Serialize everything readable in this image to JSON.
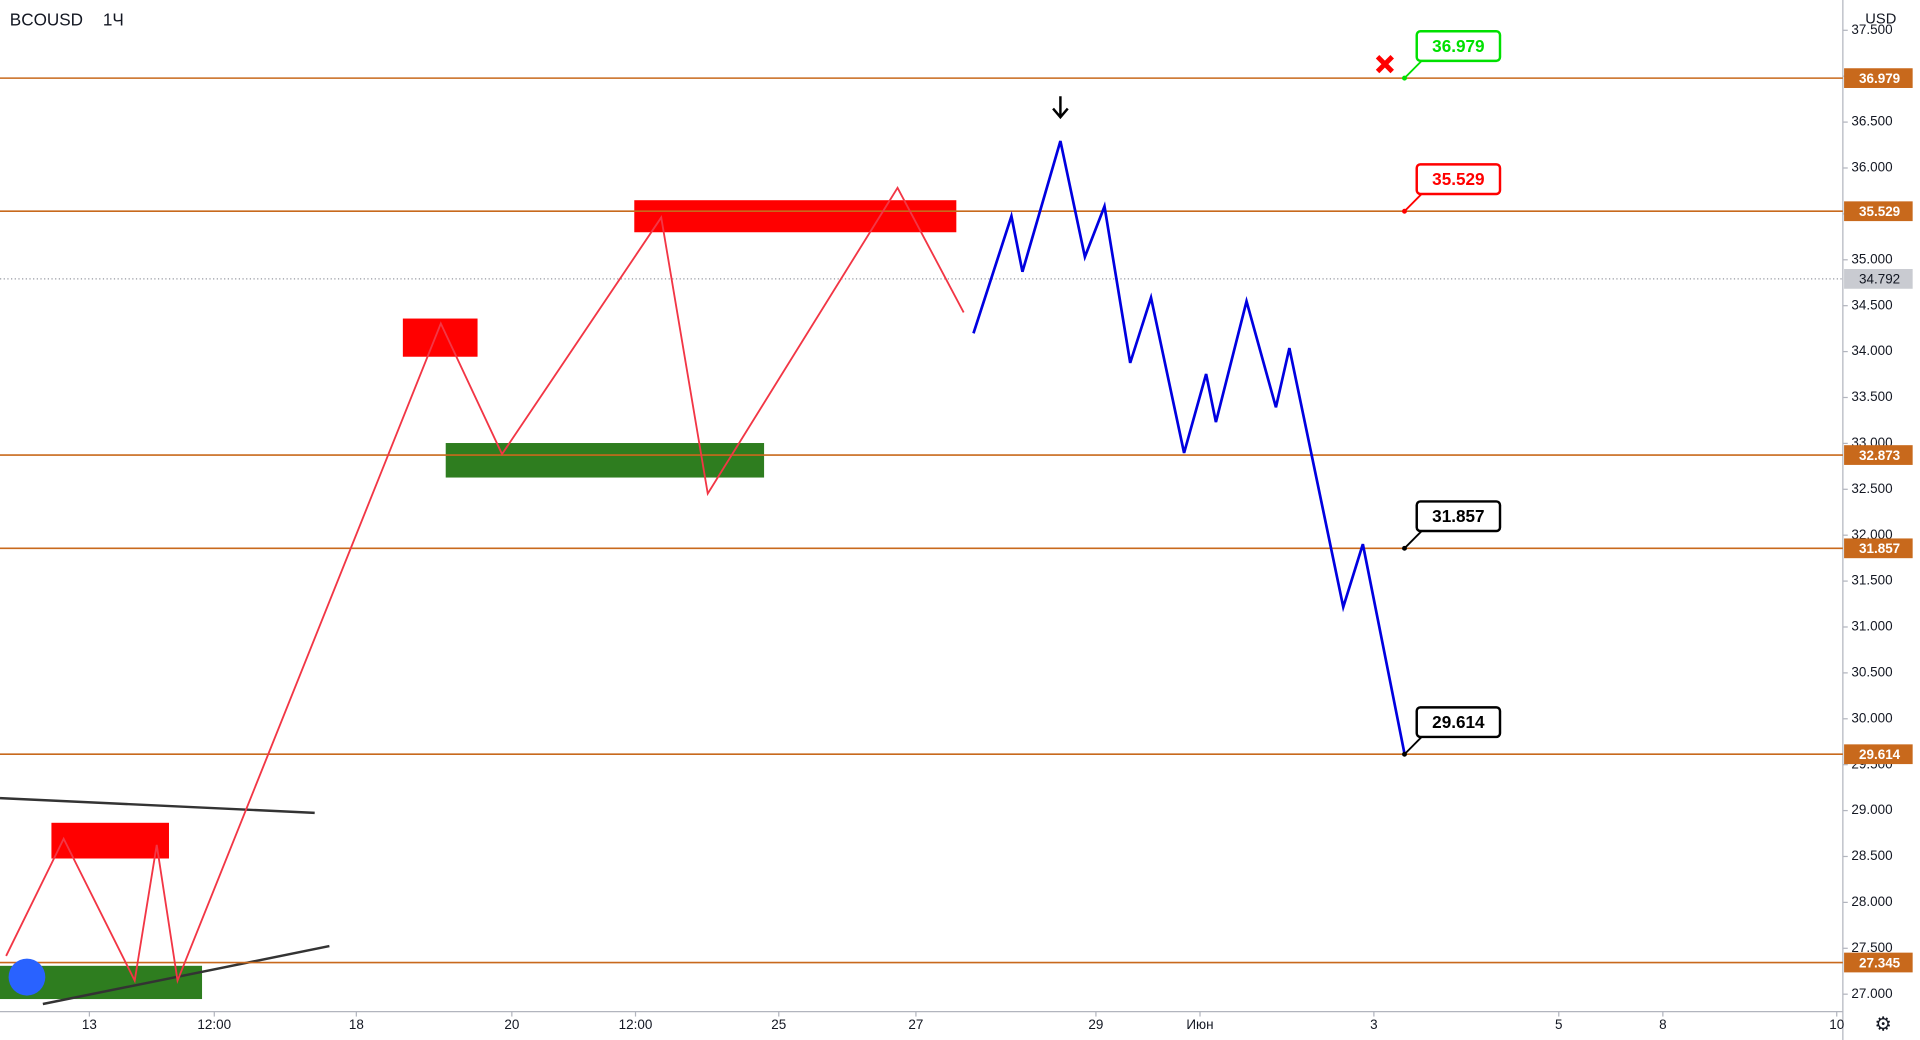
{
  "chart_data": {
    "type": "line",
    "title": "BCOUSD",
    "interval": "1Ч",
    "currency": "USD",
    "xlim": [
      0,
      301
    ],
    "ylim": [
      26.81,
      37.83
    ],
    "yticks": [
      {
        "value": 27,
        "label": "27.000"
      },
      {
        "value": 27.5,
        "label": "27.500"
      },
      {
        "value": 28,
        "label": "28.000"
      },
      {
        "value": 28.5,
        "label": "28.500"
      },
      {
        "value": 29,
        "label": "29.000"
      },
      {
        "value": 29.5,
        "label": "29.500"
      },
      {
        "value": 30,
        "label": "30.000"
      },
      {
        "value": 30.5,
        "label": "30.500"
      },
      {
        "value": 31,
        "label": "31.000"
      },
      {
        "value": 31.5,
        "label": "31.500"
      },
      {
        "value": 32,
        "label": "32.000"
      },
      {
        "value": 32.5,
        "label": "32.500"
      },
      {
        "value": 33,
        "label": "33.000"
      },
      {
        "value": 33.5,
        "label": "33.500"
      },
      {
        "value": 34,
        "label": "34.000"
      },
      {
        "value": 34.5,
        "label": "34.500"
      },
      {
        "value": 35,
        "label": "35.000"
      },
      {
        "value": 35.5,
        "label": "35.500"
      },
      {
        "value": 36,
        "label": "36.000"
      },
      {
        "value": 36.5,
        "label": "36.500"
      },
      {
        "value": 37,
        "label": "37.000"
      },
      {
        "value": 37.5,
        "label": "37.500"
      }
    ],
    "xticks": [
      {
        "value": 14.6,
        "label": "13"
      },
      {
        "value": 35,
        "label": "12:00"
      },
      {
        "value": 58.2,
        "label": "18"
      },
      {
        "value": 83.6,
        "label": "20"
      },
      {
        "value": 103.8,
        "label": "12:00"
      },
      {
        "value": 127.2,
        "label": "25"
      },
      {
        "value": 149.6,
        "label": "27"
      },
      {
        "value": 179,
        "label": "29"
      },
      {
        "value": 196,
        "label": "Июн"
      },
      {
        "value": 224.4,
        "label": "3"
      },
      {
        "value": 254.6,
        "label": "5"
      },
      {
        "value": 271.6,
        "label": "8"
      },
      {
        "value": 300,
        "label": "10"
      }
    ],
    "series": [
      {
        "color": "#f23645",
        "x": [
          1,
          10.4,
          22,
          25.6,
          29,
          72,
          82,
          108,
          115.6,
          146.6,
          157.4
        ],
        "values": [
          27.417,
          28.693,
          27.148,
          28.626,
          27.148,
          34.306,
          32.883,
          35.461,
          32.453,
          35.784,
          34.427
        ]
      },
      {
        "color": "#0000e0",
        "x": [
          159,
          165.2,
          167,
          173.2,
          177.2,
          180.4,
          184.6,
          188,
          193.4,
          197,
          198.6,
          203.6,
          208.4,
          210.6,
          219.4,
          222.6,
          229.4
        ],
        "values": [
          34.199,
          35.475,
          34.87,
          36.294,
          35.032,
          35.582,
          33.877,
          34.588,
          32.896,
          33.756,
          33.232,
          34.548,
          33.393,
          34.038,
          31.218,
          31.902,
          29.62
        ]
      }
    ],
    "levels": [
      {
        "value": 36.979
      },
      {
        "value": 35.529
      },
      {
        "value": 32.873
      },
      {
        "value": 31.857
      },
      {
        "value": 29.614
      },
      {
        "value": 27.345
      }
    ],
    "level_color": "#c8691c",
    "last_price": 34.792,
    "callouts": [
      {
        "value": 36.979,
        "color": "#00e000"
      },
      {
        "value": 35.529,
        "color": "#f00"
      },
      {
        "value": 31.857,
        "color": "#000"
      },
      {
        "value": 29.614,
        "color": "#000"
      }
    ],
    "callout_x": 229.4,
    "zones": [
      {
        "x": [
          103.6,
          156.2
        ],
        "y": [
          35.649,
          35.3
        ],
        "color": "#ff0000"
      },
      {
        "x": [
          65.8,
          78
        ],
        "y": [
          34.36,
          33.944
        ],
        "color": "#ff0000"
      },
      {
        "x": [
          8.4,
          27.6
        ],
        "y": [
          28.867,
          28.478
        ],
        "color": "#ff0000"
      },
      {
        "x": [
          72.8,
          124.8
        ],
        "y": [
          33.004,
          32.628
        ],
        "color": "#2e7d1f"
      },
      {
        "x": [
          0,
          33
        ],
        "y": [
          27.309,
          26.947
        ],
        "color": "#2e7d1f"
      }
    ],
    "trendlines": [
      {
        "x": [
          0,
          51.4
        ],
        "y": [
          29.136,
          28.975
        ]
      },
      {
        "x": [
          7,
          53.8
        ],
        "y": [
          26.893,
          27.524
        ]
      }
    ]
  }
}
